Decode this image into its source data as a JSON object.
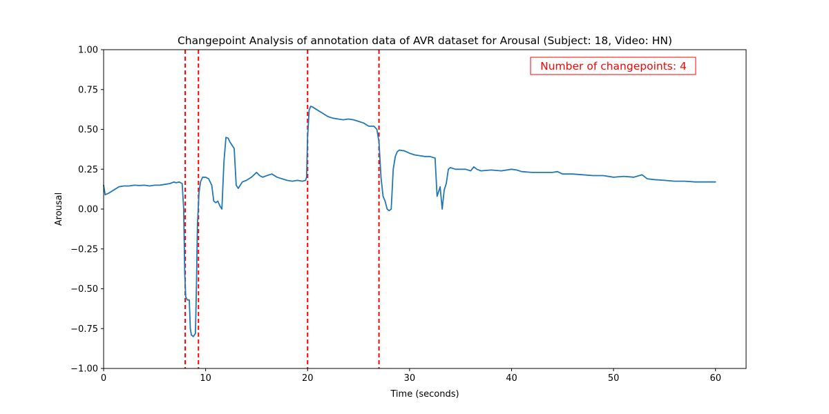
{
  "chart_data": {
    "type": "line",
    "title": "Changepoint Analysis of annotation data of AVR dataset for Arousal (Subject: 18, Video: HN)",
    "xlabel": "Time (seconds)",
    "ylabel": "Arousal",
    "xlim": [
      0,
      63
    ],
    "ylim": [
      -1.0,
      1.0
    ],
    "x_ticks": [
      0,
      10,
      20,
      30,
      40,
      50,
      60
    ],
    "x_tick_labels": [
      "0",
      "10",
      "20",
      "30",
      "40",
      "50",
      "60"
    ],
    "y_ticks": [
      -1.0,
      -0.75,
      -0.5,
      -0.25,
      0.0,
      0.25,
      0.5,
      0.75,
      1.0
    ],
    "y_tick_labels": [
      "−1.00",
      "−0.75",
      "−0.50",
      "−0.25",
      "0.00",
      "0.25",
      "0.50",
      "0.75",
      "1.00"
    ],
    "grid": false,
    "series": [
      {
        "color": "#1f77b4",
        "x": [
          0,
          0.15,
          0.5,
          1,
          1.5,
          2,
          2.5,
          3,
          3.5,
          4,
          4.5,
          5,
          5.5,
          6,
          6.5,
          6.9,
          7.1,
          7.4,
          7.7,
          7.85,
          7.95,
          8.05,
          8.2,
          8.4,
          8.5,
          8.6,
          8.8,
          9.0,
          9.1,
          9.2,
          9.35,
          9.5,
          9.7,
          10.0,
          10.3,
          10.6,
          10.8,
          11.0,
          11.2,
          11.4,
          11.6,
          11.8,
          12.0,
          12.2,
          12.4,
          12.6,
          12.8,
          13.0,
          13.2,
          13.4,
          13.6,
          14.0,
          14.5,
          15.0,
          15.3,
          15.6,
          16.0,
          16.5,
          17.0,
          17.5,
          18.0,
          18.5,
          19.0,
          19.5,
          19.8,
          19.9,
          20.0,
          20.15,
          20.3,
          20.5,
          21.0,
          21.5,
          22.0,
          22.5,
          23.0,
          23.5,
          24.0,
          24.5,
          25.0,
          25.5,
          26.0,
          26.5,
          26.8,
          27.0,
          27.2,
          27.4,
          27.6,
          27.8,
          28.0,
          28.2,
          28.4,
          28.6,
          28.8,
          29.0,
          29.5,
          30.0,
          30.5,
          31.0,
          31.5,
          32.0,
          32.5,
          32.7,
          32.9,
          33.0,
          33.2,
          33.4,
          33.6,
          33.8,
          34.0,
          34.5,
          35.0,
          35.5,
          36.0,
          36.3,
          36.6,
          37.0,
          38.0,
          39.0,
          40.0,
          40.5,
          41.0,
          42.0,
          43.0,
          44.0,
          44.5,
          45.0,
          46.0,
          47.0,
          48.0,
          49.0,
          50.0,
          51.0,
          52.0,
          52.8,
          53.3,
          54.0,
          55.0,
          56.0,
          57.0,
          58.0,
          59.0,
          60.0
        ],
        "values": [
          0.15,
          0.09,
          0.1,
          0.12,
          0.14,
          0.145,
          0.145,
          0.15,
          0.148,
          0.15,
          0.145,
          0.15,
          0.15,
          0.155,
          0.16,
          0.17,
          0.165,
          0.17,
          0.16,
          0.0,
          -0.4,
          -0.55,
          -0.57,
          -0.57,
          -0.75,
          -0.79,
          -0.8,
          -0.78,
          -0.5,
          -0.1,
          0.1,
          0.17,
          0.2,
          0.2,
          0.19,
          0.15,
          0.05,
          0.04,
          0.05,
          0.02,
          0.0,
          0.3,
          0.45,
          0.445,
          0.42,
          0.4,
          0.38,
          0.15,
          0.13,
          0.15,
          0.17,
          0.18,
          0.2,
          0.23,
          0.21,
          0.2,
          0.21,
          0.22,
          0.2,
          0.19,
          0.18,
          0.175,
          0.18,
          0.175,
          0.18,
          0.2,
          0.45,
          0.62,
          0.645,
          0.64,
          0.62,
          0.6,
          0.58,
          0.57,
          0.565,
          0.56,
          0.565,
          0.56,
          0.55,
          0.54,
          0.52,
          0.52,
          0.5,
          0.42,
          0.2,
          0.08,
          0.05,
          0.0,
          -0.01,
          0.0,
          0.25,
          0.33,
          0.36,
          0.37,
          0.365,
          0.35,
          0.34,
          0.335,
          0.33,
          0.33,
          0.32,
          0.08,
          0.12,
          0.14,
          0.0,
          0.12,
          0.16,
          0.25,
          0.26,
          0.25,
          0.25,
          0.25,
          0.24,
          0.265,
          0.25,
          0.24,
          0.245,
          0.24,
          0.25,
          0.245,
          0.235,
          0.23,
          0.23,
          0.23,
          0.235,
          0.22,
          0.22,
          0.215,
          0.21,
          0.21,
          0.2,
          0.205,
          0.2,
          0.215,
          0.19,
          0.185,
          0.18,
          0.175,
          0.175,
          0.17,
          0.17,
          0.17
        ]
      }
    ],
    "changepoints": {
      "color": "#ff0000",
      "x": [
        8.0,
        9.3,
        20.0,
        27.0
      ]
    },
    "annotation": {
      "text": "Number of changepoints: 4",
      "color": "#ff0000",
      "placement": "top-right"
    }
  }
}
